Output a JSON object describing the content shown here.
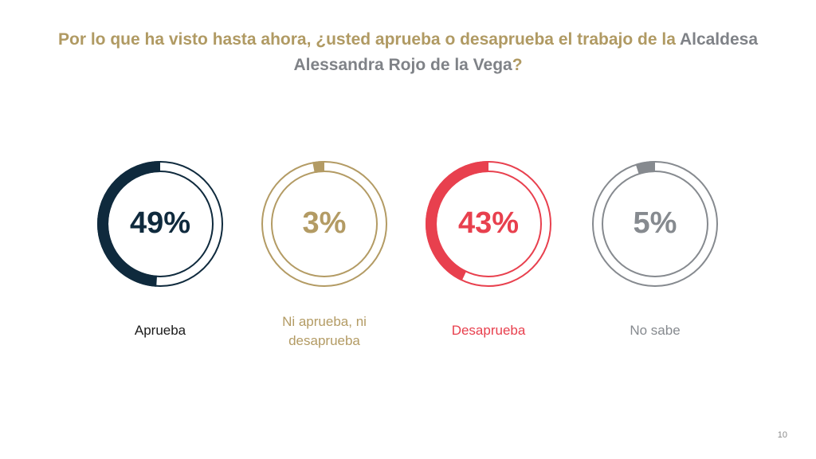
{
  "title": {
    "part1": "Por lo que ha visto hasta ahora, ¿usted aprueba o desaprueba el trabajo de la",
    "highlight": "Alcaldesa Alessandra Rojo de la Vega",
    "part2": "?"
  },
  "page_number": "10",
  "chart_data": {
    "type": "pie",
    "style": "donut-rings",
    "categories": [
      "Aprueba",
      "Ni aprueba, ni desaprueba",
      "Desaprueba",
      "No sabe"
    ],
    "values": [
      49,
      3,
      43,
      5
    ],
    "value_labels": [
      "49%",
      "3%",
      "43%",
      "5%"
    ],
    "colors": [
      "#0f2a3d",
      "#b39b64",
      "#e8404e",
      "#868a8f"
    ],
    "label_colors": [
      "#1a1a1a",
      "#b39b64",
      "#e8404e",
      "#868a8f"
    ]
  }
}
